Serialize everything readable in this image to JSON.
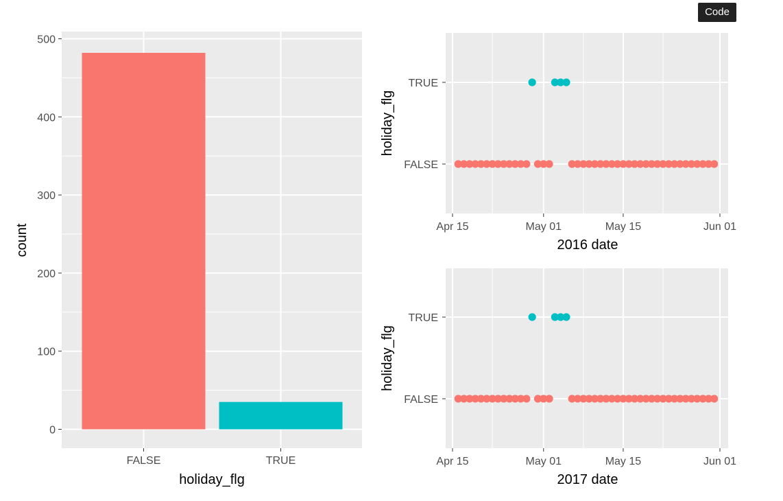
{
  "toolbar": {
    "code_label": "Code"
  },
  "colors": {
    "false": "#F8766D",
    "true": "#00BFC4",
    "panel": "#EBEBEB",
    "grid": "#FFFFFF"
  },
  "chart_data": [
    {
      "type": "bar",
      "categories": [
        "FALSE",
        "TRUE"
      ],
      "values": [
        482,
        35
      ],
      "xlabel": "holiday_flg",
      "ylabel": "count",
      "ylim": [
        0,
        500
      ],
      "yticks": [
        "0",
        "100",
        "200",
        "300",
        "400",
        "500"
      ],
      "grid": true
    },
    {
      "type": "scatter",
      "xlabel": "2016 date",
      "ylabel": "holiday_flg",
      "categories_y": [
        "FALSE",
        "TRUE"
      ],
      "xticks": [
        "Apr 15",
        "May 01",
        "May 15",
        "Jun 01"
      ],
      "xlim": [
        "2016-04-14",
        "2016-06-01"
      ],
      "true_dates": [
        "2016-04-29",
        "2016-05-03",
        "2016-05-04",
        "2016-05-05"
      ],
      "false_dates_from": "2016-04-16",
      "false_dates_to": "2016-05-31",
      "grid": true
    },
    {
      "type": "scatter",
      "xlabel": "2017 date",
      "ylabel": "holiday_flg",
      "categories_y": [
        "FALSE",
        "TRUE"
      ],
      "xticks": [
        "Apr 15",
        "May 01",
        "May 15",
        "Jun 01"
      ],
      "xlim": [
        "2017-04-14",
        "2017-06-01"
      ],
      "true_dates": [
        "2017-04-29",
        "2017-05-03",
        "2017-05-04",
        "2017-05-05"
      ],
      "false_dates_from": "2017-04-16",
      "false_dates_to": "2017-05-31",
      "grid": true
    }
  ]
}
